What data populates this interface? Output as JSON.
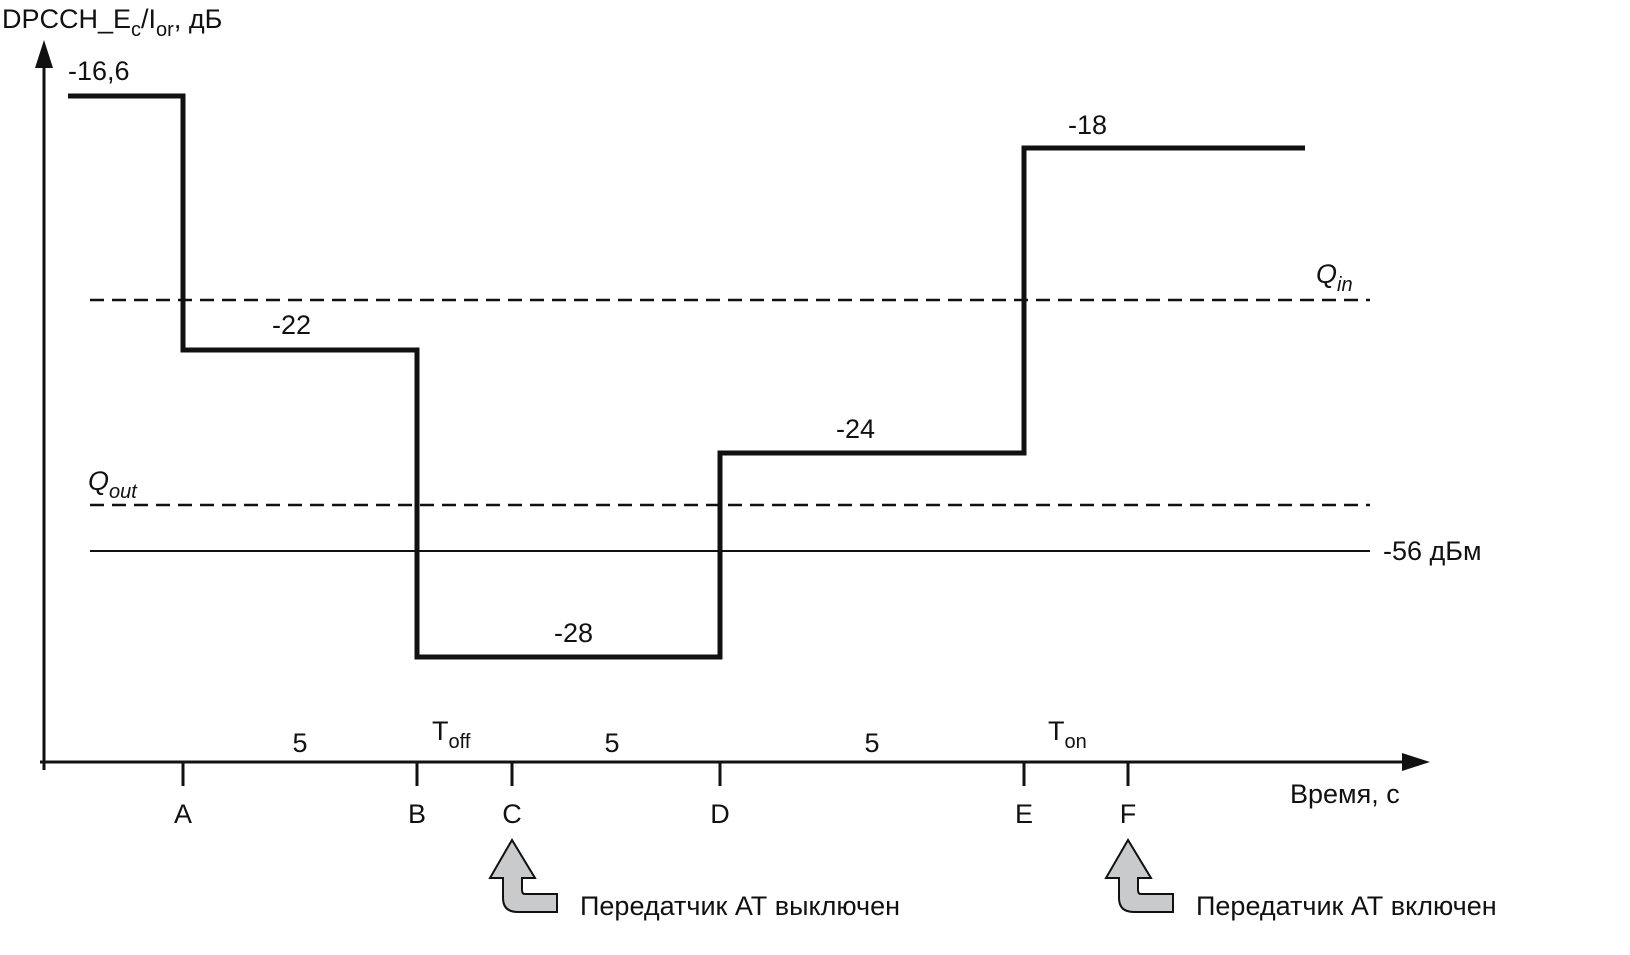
{
  "axes": {
    "y_label_main": "DPCCH_E",
    "y_label_sub_c": "c",
    "y_label_slash": "/I",
    "y_label_sub_or": "or",
    "y_label_unit": ", дБ",
    "x_label": "Время, с"
  },
  "levels": {
    "l1": "-16,6",
    "l2": "-22",
    "l3": "-28",
    "l4": "-24",
    "l5": "-18"
  },
  "thresholds": {
    "qin_main": "Q",
    "qin_sub": "in",
    "qout_main": "Q",
    "qout_sub": "out",
    "noise": "-56 дБм"
  },
  "points": [
    "A",
    "B",
    "C",
    "D",
    "E",
    "F"
  ],
  "intervals": {
    "ab": "5",
    "toff_main": "T",
    "toff_sub": "off",
    "cd": "5",
    "de": "5",
    "ton_main": "T",
    "ton_sub": "on"
  },
  "annotations": {
    "tx_off": "Передатчик АТ выключен",
    "tx_on": "Передатчик АТ включен"
  },
  "colors": {
    "line": "#111111",
    "arrow_fill": "#c8cacc"
  }
}
